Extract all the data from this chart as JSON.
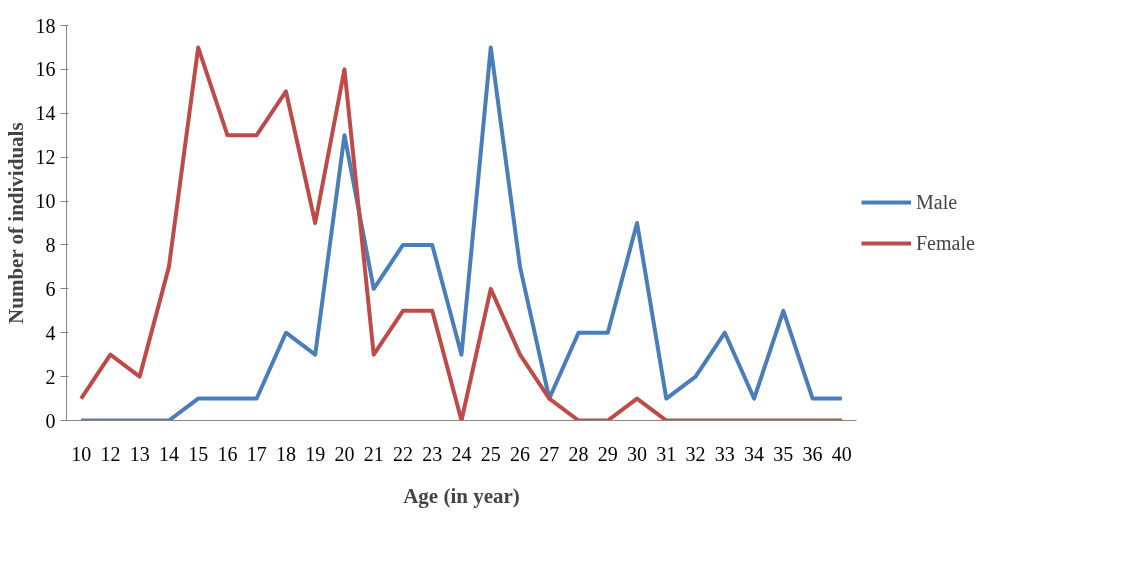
{
  "chart_data": {
    "type": "line",
    "xlabel": "Age (in year)",
    "ylabel": "Number of individuals",
    "categories": [
      "10",
      "12",
      "13",
      "14",
      "15",
      "16",
      "17",
      "18",
      "19",
      "20",
      "21",
      "22",
      "23",
      "24",
      "25",
      "26",
      "27",
      "28",
      "29",
      "30",
      "31",
      "32",
      "33",
      "34",
      "35",
      "36",
      "40"
    ],
    "series": [
      {
        "name": "Male",
        "color": "#4a7ebb",
        "values": [
          0,
          0,
          0,
          0,
          1,
          1,
          1,
          4,
          3,
          13,
          6,
          8,
          8,
          3,
          17,
          7,
          1,
          4,
          4,
          9,
          1,
          2,
          4,
          1,
          5,
          1,
          1
        ]
      },
      {
        "name": "Female",
        "color": "#be4b48",
        "values": [
          1,
          3,
          2,
          7,
          17,
          13,
          13,
          15,
          9,
          16,
          3,
          5,
          5,
          0,
          6,
          3,
          1,
          0,
          0,
          1,
          0,
          0,
          0,
          0,
          0,
          0,
          0
        ]
      }
    ],
    "ylim": [
      0,
      18
    ],
    "yticks": [
      0,
      2,
      4,
      6,
      8,
      10,
      12,
      14,
      16,
      18
    ],
    "grid": false,
    "legend": "right",
    "marker": "none",
    "line_style": "solid"
  }
}
